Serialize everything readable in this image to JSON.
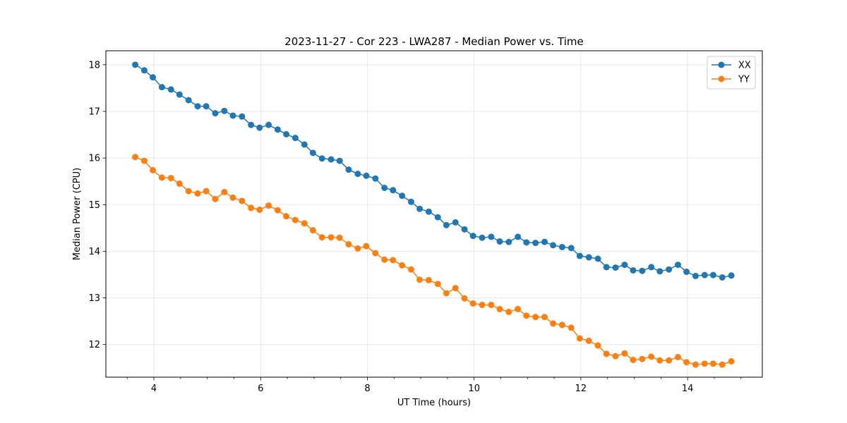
{
  "chart_data": {
    "type": "line",
    "title": "2023-11-27 - Cor 223 - LWA287 - Median Power vs. Time",
    "xlabel": "UT Time (hours)",
    "ylabel": "Median Power (CPU)",
    "xlim": [
      3.1,
      15.4
    ],
    "ylim": [
      11.3,
      18.3
    ],
    "xticks": [
      4,
      6,
      8,
      10,
      12,
      14
    ],
    "xtick_labels": [
      "4",
      "6",
      "8",
      "10",
      "12",
      "14"
    ],
    "yticks": [
      12,
      13,
      14,
      15,
      16,
      17,
      18
    ],
    "ytick_labels": [
      "12",
      "13",
      "14",
      "15",
      "16",
      "17",
      "18"
    ],
    "grid": true,
    "legend": "top-right",
    "x": [
      3.65,
      3.82,
      3.98,
      4.15,
      4.32,
      4.48,
      4.65,
      4.82,
      4.98,
      5.15,
      5.32,
      5.48,
      5.65,
      5.82,
      5.98,
      6.15,
      6.32,
      6.48,
      6.65,
      6.82,
      6.98,
      7.15,
      7.32,
      7.48,
      7.65,
      7.82,
      7.98,
      8.15,
      8.32,
      8.48,
      8.65,
      8.82,
      8.98,
      9.15,
      9.32,
      9.48,
      9.65,
      9.82,
      9.98,
      10.15,
      10.32,
      10.48,
      10.65,
      10.82,
      10.98,
      11.15,
      11.32,
      11.48,
      11.65,
      11.82,
      11.98,
      12.15,
      12.32,
      12.48,
      12.65,
      12.82,
      12.98,
      13.15,
      13.32,
      13.48,
      13.65,
      13.82,
      13.98,
      14.15,
      14.32,
      14.48,
      14.65,
      14.82
    ],
    "series": [
      {
        "name": "XX",
        "color": "#1f77b4",
        "values": [
          18.0,
          17.88,
          17.73,
          17.52,
          17.47,
          17.36,
          17.24,
          17.11,
          17.11,
          16.96,
          17.01,
          16.91,
          16.89,
          16.71,
          16.65,
          16.71,
          16.61,
          16.51,
          16.43,
          16.29,
          16.11,
          15.99,
          15.97,
          15.94,
          15.75,
          15.66,
          15.62,
          15.56,
          15.36,
          15.31,
          15.19,
          15.06,
          14.91,
          14.85,
          14.73,
          14.56,
          14.62,
          14.47,
          14.33,
          14.29,
          14.31,
          14.21,
          14.2,
          14.31,
          14.19,
          14.18,
          14.2,
          14.13,
          14.09,
          14.07,
          13.9,
          13.87,
          13.84,
          13.66,
          13.65,
          13.71,
          13.59,
          13.58,
          13.66,
          13.57,
          13.61,
          13.71,
          13.56,
          13.47,
          13.49,
          13.49,
          13.44,
          13.48
        ]
      },
      {
        "name": "YY",
        "color": "#ff7f0e",
        "values": [
          16.02,
          15.94,
          15.74,
          15.58,
          15.57,
          15.45,
          15.29,
          15.24,
          15.29,
          15.12,
          15.27,
          15.15,
          15.08,
          14.93,
          14.89,
          14.98,
          14.88,
          14.75,
          14.67,
          14.6,
          14.45,
          14.3,
          14.3,
          14.29,
          14.15,
          14.06,
          14.11,
          13.96,
          13.82,
          13.81,
          13.7,
          13.61,
          13.39,
          13.38,
          13.3,
          13.1,
          13.21,
          12.99,
          12.88,
          12.85,
          12.85,
          12.76,
          12.7,
          12.76,
          12.62,
          12.59,
          12.59,
          12.45,
          12.42,
          12.36,
          12.13,
          12.08,
          11.98,
          11.8,
          11.75,
          11.81,
          11.67,
          11.69,
          11.74,
          11.66,
          11.66,
          11.73,
          11.62,
          11.57,
          11.59,
          11.59,
          11.57,
          11.64
        ]
      }
    ]
  }
}
